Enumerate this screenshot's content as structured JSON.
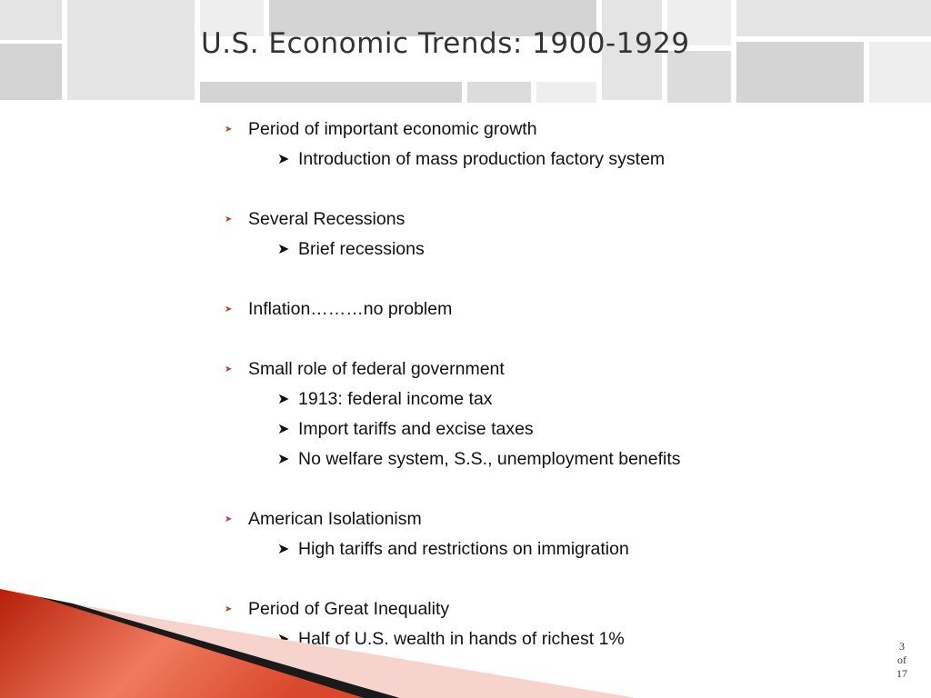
{
  "slide": {
    "title": "U.S. Economic Trends: 1900-1929",
    "sections": [
      {
        "bullet": "Period of important economic growth",
        "sub": [
          "Introduction of mass production factory system"
        ]
      },
      {
        "bullet": "Several Recessions",
        "sub": [
          "Brief recessions"
        ]
      },
      {
        "bullet": "Inflation………no problem",
        "sub": []
      },
      {
        "bullet": "Small role of federal government",
        "sub": [
          "1913: federal income tax",
          "Import tariffs and excise taxes",
          "No welfare system, S.S., unemployment benefits"
        ]
      },
      {
        "bullet": "American Isolationism",
        "sub": [
          "High tariffs and restrictions on immigration"
        ]
      },
      {
        "bullet": "Period of Great Inequality",
        "sub": [
          "Half of U.S. wealth in hands of richest 1%"
        ]
      }
    ]
  },
  "page": {
    "current": "3",
    "of_label": "of",
    "total": "17"
  },
  "colors": {
    "accent": "#c0392b",
    "swoosh_dark": "#b51f0a",
    "swoosh_light": "#f07a5e"
  }
}
